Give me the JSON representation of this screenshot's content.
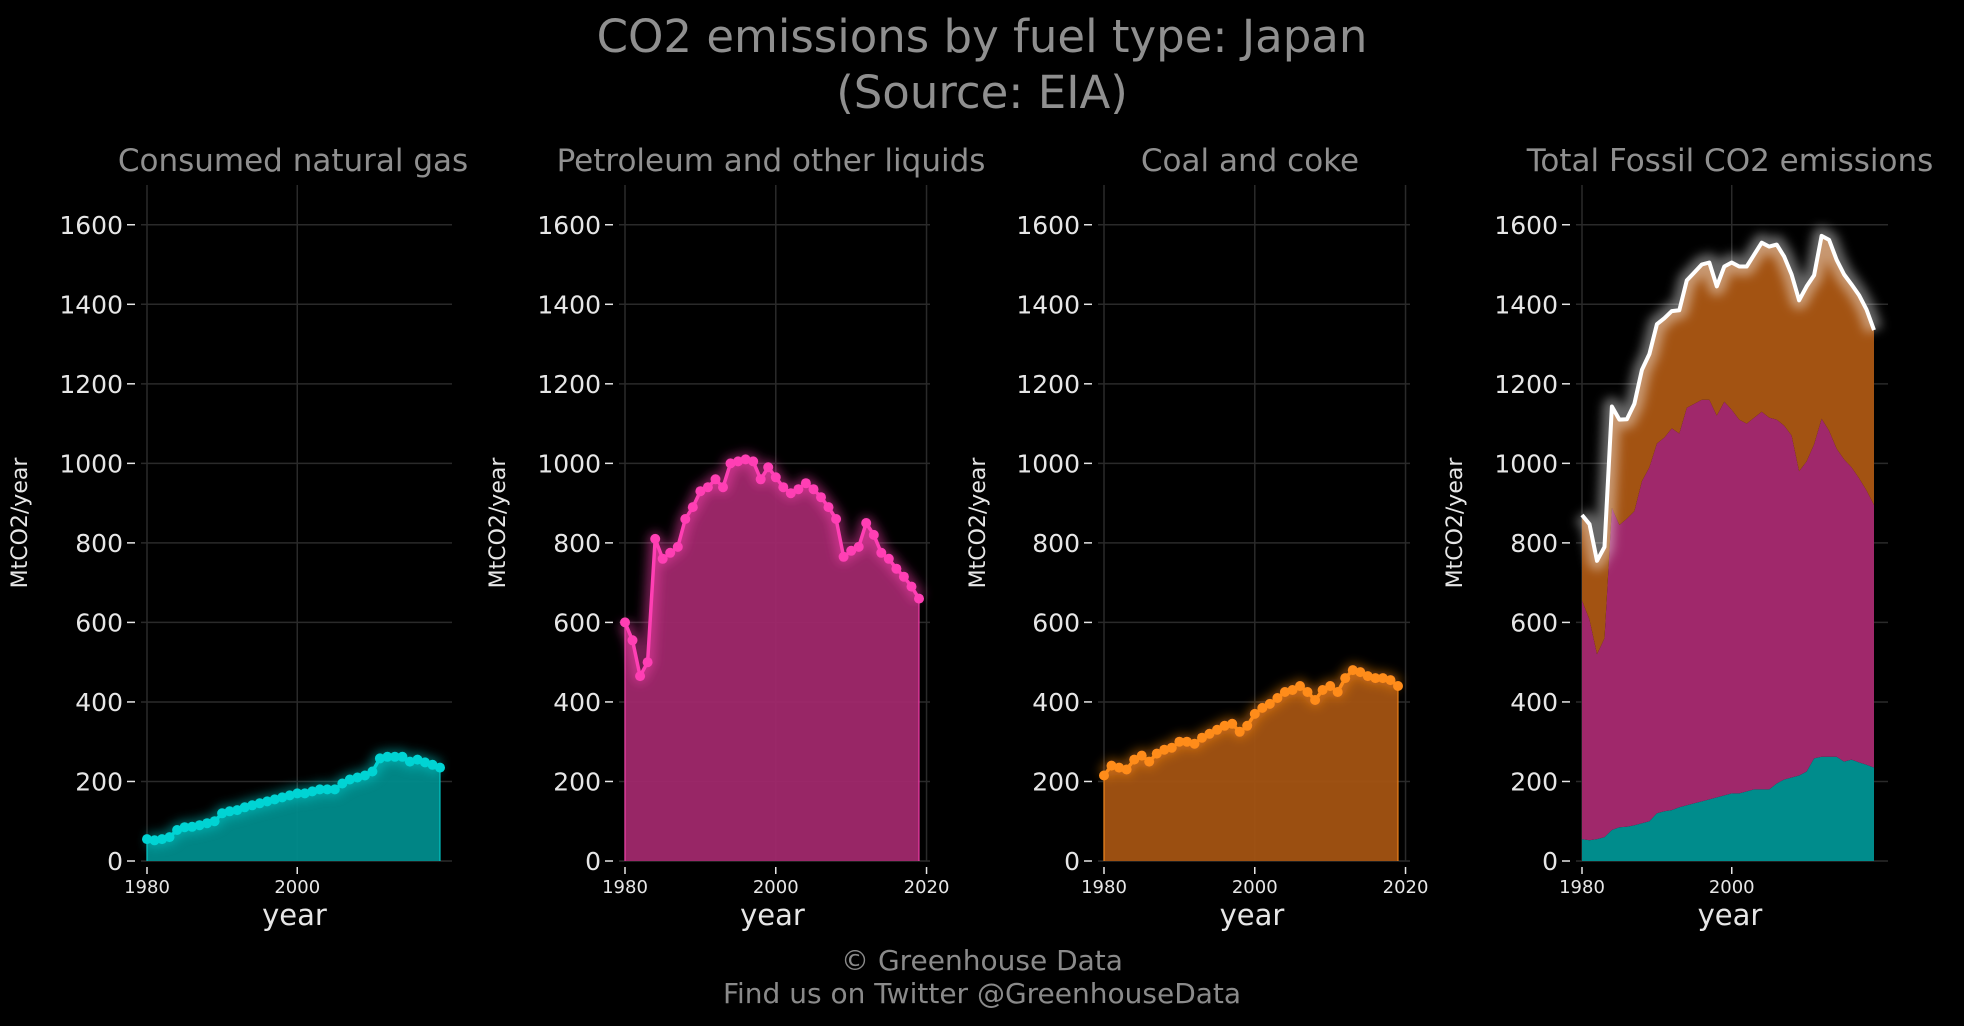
{
  "title_line1": "CO2 emissions by fuel type: Japan",
  "title_line2": "(Source: EIA)",
  "footer_line1": "© Greenhouse Data",
  "footer_line2": "Find us on Twitter @GreenhouseData",
  "years": [
    1980,
    1981,
    1982,
    1983,
    1984,
    1985,
    1986,
    1987,
    1988,
    1989,
    1990,
    1991,
    1992,
    1993,
    1994,
    1995,
    1996,
    1997,
    1998,
    1999,
    2000,
    2001,
    2002,
    2003,
    2004,
    2005,
    2006,
    2007,
    2008,
    2009,
    2010,
    2011,
    2012,
    2013,
    2014,
    2015,
    2016,
    2017,
    2018,
    2019
  ],
  "colors": {
    "gas": "#00d4d4",
    "gas_fill": "#008c8c",
    "petroleum": "#ff3fb4",
    "petroleum_fill": "#a0286b",
    "coal": "#ff8c1a",
    "coal_fill": "#a35312",
    "total": "#ffffff",
    "grid": "#2a2a2a",
    "axis_text": "#e6e6e6",
    "panel_title": "#8f8f8f"
  },
  "chart_data": [
    {
      "type": "line",
      "title": "Consumed natural gas",
      "xlabel": "year",
      "ylabel": "MtCO2/year",
      "ylim": [
        0,
        1700
      ],
      "xlim": [
        1980,
        2019
      ],
      "xticks": [
        1980,
        2000
      ],
      "yticks": [
        0,
        200,
        400,
        600,
        800,
        1000,
        1200,
        1400,
        1600
      ],
      "grid": true,
      "area_fill": true,
      "series": [
        {
          "key": "gas",
          "values": [
            55,
            52,
            55,
            60,
            78,
            85,
            86,
            90,
            95,
            100,
            120,
            125,
            128,
            135,
            140,
            145,
            150,
            155,
            160,
            165,
            170,
            170,
            175,
            180,
            180,
            180,
            195,
            205,
            210,
            215,
            225,
            258,
            262,
            262,
            262,
            250,
            255,
            248,
            242,
            235
          ]
        }
      ]
    },
    {
      "type": "line",
      "title": "Petroleum and other liquids",
      "xlabel": "year",
      "ylabel": "MtCO2/year",
      "ylim": [
        0,
        1700
      ],
      "xlim": [
        1980,
        2019
      ],
      "xticks": [
        1980,
        2000,
        2020
      ],
      "yticks": [
        0,
        200,
        400,
        600,
        800,
        1000,
        1200,
        1400,
        1600
      ],
      "grid": true,
      "area_fill": true,
      "series": [
        {
          "key": "petroleum",
          "values": [
            600,
            555,
            465,
            500,
            810,
            760,
            775,
            790,
            860,
            890,
            930,
            940,
            960,
            940,
            1000,
            1005,
            1010,
            1005,
            960,
            990,
            965,
            940,
            925,
            935,
            950,
            935,
            915,
            890,
            860,
            765,
            780,
            790,
            850,
            820,
            775,
            760,
            735,
            715,
            690,
            660
          ]
        }
      ]
    },
    {
      "type": "line",
      "title": "Coal and coke",
      "xlabel": "year",
      "ylabel": "MtCO2/year",
      "ylim": [
        0,
        1700
      ],
      "xlim": [
        1980,
        2019
      ],
      "xticks": [
        1980,
        2000,
        2020
      ],
      "yticks": [
        0,
        200,
        400,
        600,
        800,
        1000,
        1200,
        1400,
        1600
      ],
      "grid": true,
      "area_fill": true,
      "series": [
        {
          "key": "coal",
          "values": [
            215,
            240,
            235,
            230,
            255,
            265,
            250,
            270,
            280,
            285,
            300,
            300,
            295,
            310,
            320,
            330,
            340,
            345,
            325,
            340,
            370,
            385,
            395,
            410,
            425,
            430,
            440,
            425,
            405,
            430,
            440,
            425,
            460,
            480,
            475,
            465,
            460,
            460,
            455,
            440
          ]
        }
      ]
    },
    {
      "type": "area",
      "title": "Total Fossil CO2 emissions",
      "xlabel": "year",
      "ylabel": "MtCO2/year",
      "ylim": [
        0,
        1700
      ],
      "xlim": [
        1980,
        2019
      ],
      "xticks": [
        1980,
        2000
      ],
      "yticks": [
        0,
        200,
        400,
        600,
        800,
        1000,
        1200,
        1400,
        1600
      ],
      "grid": true,
      "stacked": true,
      "stack_order": [
        "gas",
        "petroleum",
        "coal"
      ],
      "total_line": true,
      "series": [
        {
          "key": "gas",
          "values": [
            55,
            52,
            55,
            60,
            78,
            85,
            86,
            90,
            95,
            100,
            120,
            125,
            128,
            135,
            140,
            145,
            150,
            155,
            160,
            165,
            170,
            170,
            175,
            180,
            180,
            180,
            195,
            205,
            210,
            215,
            225,
            258,
            262,
            262,
            262,
            250,
            255,
            248,
            242,
            235
          ]
        },
        {
          "key": "petroleum",
          "values": [
            600,
            555,
            465,
            500,
            810,
            760,
            775,
            790,
            860,
            890,
            930,
            940,
            960,
            940,
            1000,
            1005,
            1010,
            1005,
            960,
            990,
            965,
            940,
            925,
            935,
            950,
            935,
            915,
            890,
            860,
            765,
            780,
            790,
            850,
            820,
            775,
            760,
            735,
            715,
            690,
            660
          ]
        },
        {
          "key": "coal",
          "values": [
            215,
            240,
            235,
            230,
            255,
            265,
            250,
            270,
            280,
            285,
            300,
            300,
            295,
            310,
            320,
            330,
            340,
            345,
            325,
            340,
            370,
            385,
            395,
            410,
            425,
            430,
            440,
            425,
            405,
            430,
            440,
            425,
            460,
            480,
            475,
            465,
            460,
            460,
            455,
            440
          ]
        }
      ]
    }
  ]
}
